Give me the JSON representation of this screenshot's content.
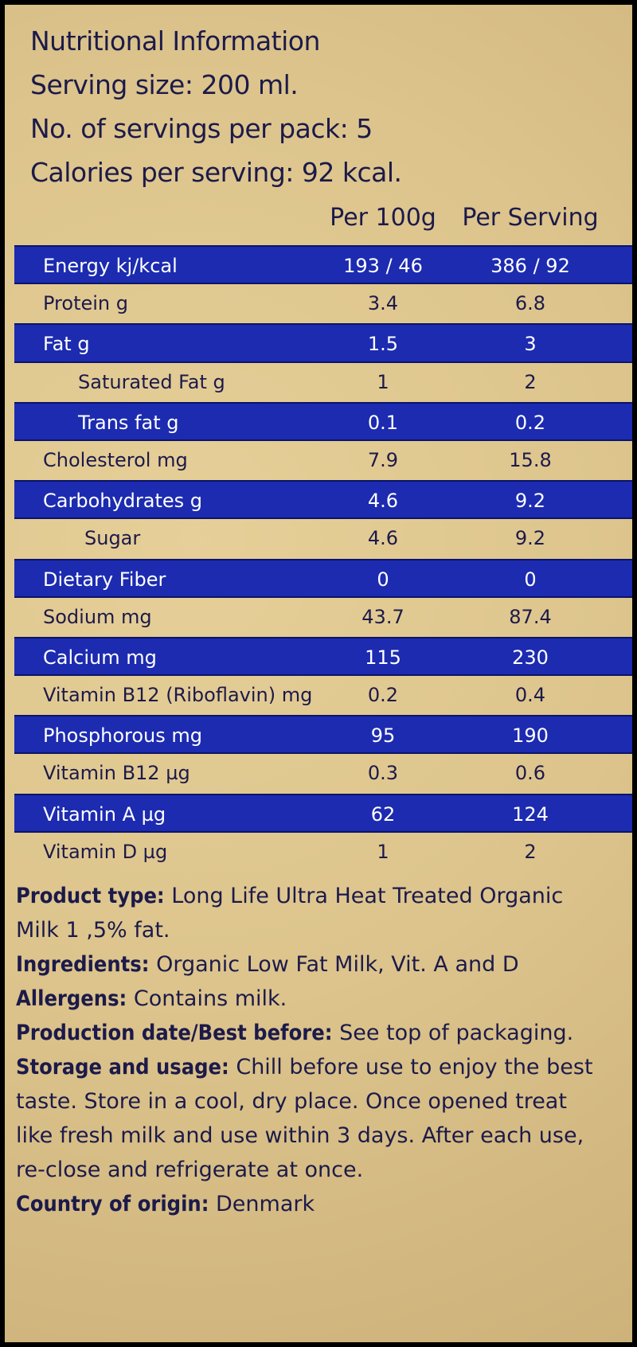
{
  "header": {
    "lines": [
      "Nutritional Information",
      "Serving size: 200 ml.",
      "No. of servings per pack: 5",
      "Calories per serving: 92 kcal."
    ]
  },
  "table": {
    "columns": [
      "Per 100g",
      "Per Serving"
    ],
    "rows": [
      [
        "Energy kj/kcal",
        "193 / 46",
        "386 / 92"
      ],
      [
        "Protein g",
        "3.4",
        "6.8"
      ],
      [
        "Fat g",
        "1.5",
        "3"
      ],
      [
        "Saturated Fat g",
        "1",
        "2"
      ],
      [
        "Trans fat g",
        "0.1",
        "0.2"
      ],
      [
        "Cholesterol mg",
        "7.9",
        "15.8"
      ],
      [
        "Carbohydrates g",
        "4.6",
        "9.2"
      ],
      [
        "Sugar",
        "4.6",
        "9.2"
      ],
      [
        "Dietary Fiber",
        "0",
        "0"
      ],
      [
        "Sodium mg",
        "43.7",
        "87.4"
      ],
      [
        "Calcium mg",
        "115",
        "230"
      ],
      [
        "Vitamin B12 (Riboflavin) mg",
        "0.2",
        "0.4"
      ],
      [
        "Phosphorous mg",
        "95",
        "190"
      ],
      [
        "Vitamin B12 µg",
        "0.3",
        "0.6"
      ],
      [
        "Vitamin A µg",
        "62",
        "124"
      ],
      [
        "Vitamin D µg",
        "1",
        "2"
      ]
    ]
  },
  "footer": {
    "items": [
      {
        "label": "Product type:",
        "text": "Long Life Ultra Heat Treated Organic Milk 1 ,5% fat."
      },
      {
        "label": "Ingredients:",
        "text": "Organic Low Fat Milk, Vit. A and D"
      },
      {
        "label": "Allergens:",
        "text": "Contains milk."
      },
      {
        "label": "Production date/Best before:",
        "text": "See top of packaging."
      },
      {
        "label": "Storage and usage:",
        "text": "Chill before use to enjoy the best taste. Store in a cool, dry place. Once opened treat like fresh milk and use within 3 days. After each use, re-close and refrigerate at once."
      },
      {
        "label": "Country of origin:",
        "text": "Denmark"
      }
    ]
  }
}
